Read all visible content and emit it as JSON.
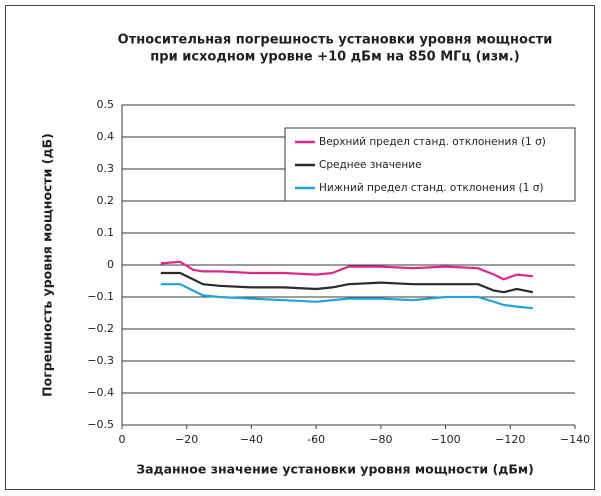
{
  "chart_data": {
    "type": "line",
    "title": [
      "Относительная погрешность установки уровня мощности",
      "при исходном уровне +10 дБм на 850 МГц (изм.)"
    ],
    "xlabel": "Заданное значение установки уровня мощности (дБм)",
    "ylabel": "Погрешность уровня мощности (дБ)",
    "x": [
      -12,
      -18,
      -22,
      -25,
      -30,
      -40,
      -50,
      -60,
      -65,
      -70,
      -80,
      -90,
      -100,
      -110,
      -115,
      -118,
      -122,
      -127
    ],
    "series": [
      {
        "name": "Верхний предел станд. отклонения (1 σ)",
        "color": "#e0268a",
        "values": [
          0.005,
          0.01,
          -0.015,
          -0.02,
          -0.02,
          -0.025,
          -0.025,
          -0.03,
          -0.025,
          -0.005,
          -0.005,
          -0.01,
          -0.005,
          -0.01,
          -0.03,
          -0.045,
          -0.03,
          -0.035
        ]
      },
      {
        "name": "Среднее значение",
        "color": "#2b2b2b",
        "values": [
          -0.025,
          -0.025,
          -0.045,
          -0.06,
          -0.065,
          -0.07,
          -0.07,
          -0.075,
          -0.07,
          -0.06,
          -0.055,
          -0.06,
          -0.06,
          -0.06,
          -0.08,
          -0.085,
          -0.075,
          -0.085
        ]
      },
      {
        "name": "Нижний предел станд. отклонения (1 σ)",
        "color": "#1fa3dd",
        "values": [
          -0.06,
          -0.06,
          -0.08,
          -0.095,
          -0.1,
          -0.105,
          -0.11,
          -0.115,
          -0.11,
          -0.105,
          -0.105,
          -0.11,
          -0.1,
          -0.1,
          -0.115,
          -0.125,
          -0.13,
          -0.135
        ]
      }
    ],
    "xlim": [
      0,
      -140
    ],
    "xticks": [
      0,
      {
        "value": -20,
        "label": "−20"
      },
      {
        "value": -40,
        "label": "−40"
      },
      {
        "value": -60,
        "label": "-60"
      },
      {
        "value": -80,
        "label": "−80"
      },
      {
        "value": -100,
        "label": "−100"
      },
      {
        "value": -120,
        "label": "−120"
      },
      {
        "value": -140,
        "label": "−140"
      }
    ],
    "ylim": [
      -0.5,
      0.5
    ],
    "yticks": [
      0.5,
      0.4,
      0.3,
      0.2,
      0.1,
      0,
      {
        "value": -0.1,
        "label": "−0.1"
      },
      {
        "value": -0.2,
        "label": "−0.2"
      },
      {
        "value": -0.3,
        "label": "−0.3"
      },
      {
        "value": -0.4,
        "label": "−0.4"
      },
      {
        "value": -0.5,
        "label": "−0.5"
      }
    ],
    "grid": true,
    "legend": "upper right"
  }
}
